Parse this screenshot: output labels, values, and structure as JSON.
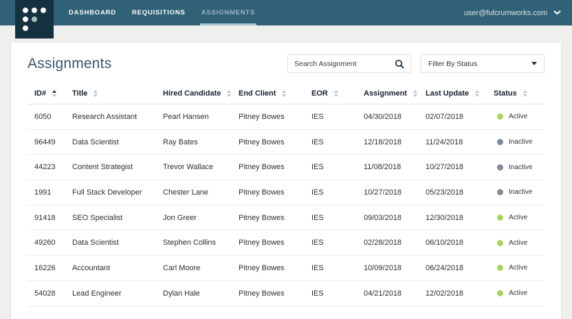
{
  "navbar": {
    "items": [
      {
        "label": "DASHBOARD",
        "active": false
      },
      {
        "label": "REQUISITIONS",
        "active": false
      },
      {
        "label": "ASSIGNMENTS",
        "active": true
      }
    ],
    "user_email": "user@fulcrumworks.com",
    "user_menu_icon": "chevron-down-icon"
  },
  "page": {
    "title": "Assignments"
  },
  "toolbar": {
    "search_placeholder": "Search Assignment",
    "search_icon": "magnifier",
    "filter_label": "Filter By Status",
    "filter_icon": "caret-down"
  },
  "table": {
    "columns": [
      {
        "label": "ID#",
        "sort": "asc"
      },
      {
        "label": "Title",
        "sort": "none"
      },
      {
        "label": "Hired Candidate",
        "sort": "none"
      },
      {
        "label": "End Client",
        "sort": "none"
      },
      {
        "label": "EOR",
        "sort": "none"
      },
      {
        "label": "Assignment",
        "sort": "none"
      },
      {
        "label": "Last Update",
        "sort": "none"
      },
      {
        "label": "Status",
        "sort": "none"
      }
    ],
    "rows": [
      {
        "id": "6050",
        "title": "Research Assistant",
        "hired_candidate": "Pearl Hansen",
        "end_client": "Pitney Bowes",
        "eor": "IES",
        "assignment": "04/30/2018",
        "last_update": "02/07/2018",
        "status": "Active"
      },
      {
        "id": "96449",
        "title": "Data Scientist",
        "hired_candidate": "Ray Bates",
        "end_client": "Pitney Bowes",
        "eor": "IES",
        "assignment": "12/18/2018",
        "last_update": "11/24/2018",
        "status": "Inactive"
      },
      {
        "id": "44223",
        "title": "Content Strategist",
        "hired_candidate": "Trevor Wallace",
        "end_client": "Pitney Bowes",
        "eor": "IES",
        "assignment": "11/08/2018",
        "last_update": "10/27/2018",
        "status": "Inactive"
      },
      {
        "id": "1991",
        "title": "Full Stack Developer",
        "hired_candidate": "Chester Lane",
        "end_client": "Pitney Bowes",
        "eor": "IES",
        "assignment": "10/27/2018",
        "last_update": "05/23/2018",
        "status": "Inactive"
      },
      {
        "id": "91418",
        "title": "SEO Specialist",
        "hired_candidate": "Jon Greer",
        "end_client": "Pitney Bowes",
        "eor": "IES",
        "assignment": "09/03/2018",
        "last_update": "12/30/2018",
        "status": "Active"
      },
      {
        "id": "49260",
        "title": "Data Scientist",
        "hired_candidate": "Stephen Collins",
        "end_client": "Pitney Bowes",
        "eor": "IES",
        "assignment": "02/28/2018",
        "last_update": "06/10/2018",
        "status": "Active"
      },
      {
        "id": "16226",
        "title": "Accountant",
        "hired_candidate": "Carl Moore",
        "end_client": "Pitney Bowes",
        "eor": "IES",
        "assignment": "10/09/2018",
        "last_update": "06/24/2018",
        "status": "Active"
      },
      {
        "id": "54028",
        "title": "Lead Engineer",
        "hired_candidate": "Dylan Hale",
        "end_client": "Pitney Bowes",
        "eor": "IES",
        "assignment": "04/21/2018",
        "last_update": "12/02/2018",
        "status": "Active"
      }
    ],
    "status_colors": {
      "Active": "#a3d65f",
      "Inactive": "#7b8b9a"
    }
  },
  "colors": {
    "navbar_bg": "#316176",
    "logo_bg": "#143140",
    "logo_accent_dot": "#9fc3bc",
    "active_tab_underline": "#a9c7ce",
    "accent_dark": "#16324f",
    "status_active": "#a3d65f",
    "status_inactive": "#7b8b9a"
  }
}
